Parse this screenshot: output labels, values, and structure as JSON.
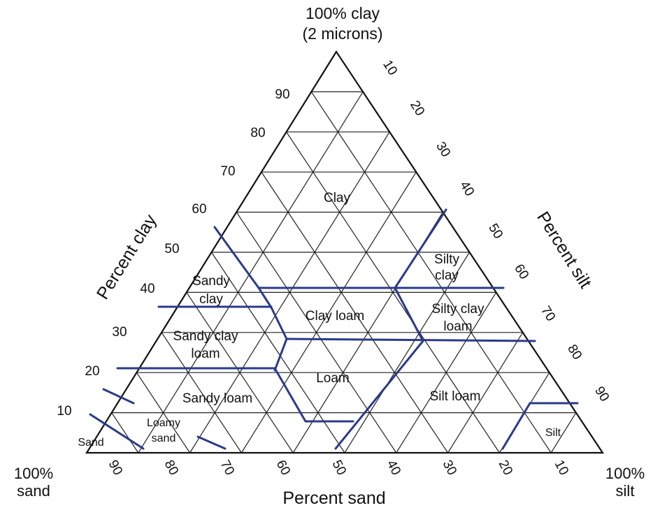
{
  "title": {
    "line1": "100% clay",
    "line2": "(2 microns)"
  },
  "axes": {
    "clay": {
      "title": "Percent clay",
      "ticks": [
        "90",
        "80",
        "70",
        "60",
        "50",
        "40",
        "30",
        "20",
        "10"
      ]
    },
    "silt": {
      "title": "Percent silt",
      "ticks": [
        "10",
        "20",
        "30",
        "40",
        "50",
        "60",
        "70",
        "80",
        "90"
      ]
    },
    "sand": {
      "title": "Percent sand",
      "ticks": [
        "90",
        "80",
        "70",
        "60",
        "50",
        "40",
        "30",
        "20",
        "10"
      ]
    }
  },
  "corners": {
    "sand": {
      "line1": "100%",
      "line2": "sand"
    },
    "silt": {
      "line1": "100%",
      "line2": "silt"
    }
  },
  "classes": {
    "clay": {
      "lines": [
        "Clay"
      ]
    },
    "silty_clay": {
      "lines": [
        "Silty",
        "clay"
      ]
    },
    "sandy_clay": {
      "lines": [
        "Sandy",
        "clay"
      ]
    },
    "clay_loam": {
      "lines": [
        "Clay loam"
      ]
    },
    "silty_clay_loam": {
      "lines": [
        "Silty clay",
        "loam"
      ]
    },
    "sandy_clay_loam": {
      "lines": [
        "Sandy clay",
        "loam"
      ]
    },
    "loam": {
      "lines": [
        "Loam"
      ]
    },
    "sandy_loam": {
      "lines": [
        "Sandy loam"
      ]
    },
    "silt_loam": {
      "lines": [
        "Silt loam"
      ]
    },
    "loamy_sand": {
      "lines": [
        "Loamy",
        "sand"
      ]
    },
    "sand": {
      "lines": [
        "Sand"
      ]
    },
    "silt": {
      "lines": [
        "Silt"
      ]
    }
  },
  "colors": {
    "boundary": "#2a3a8c",
    "grid": "#222222"
  }
}
